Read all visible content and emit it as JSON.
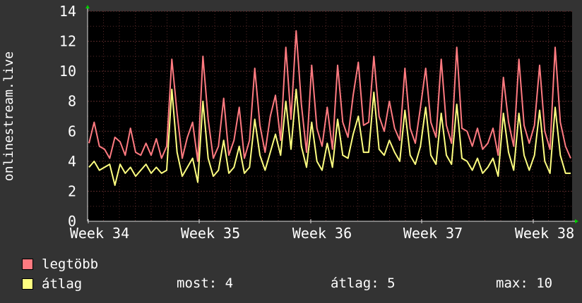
{
  "chart_data": {
    "type": "line",
    "ylabel": "onlinestream.live",
    "ylim": [
      0,
      14
    ],
    "yticks": [
      0,
      2,
      4,
      6,
      8,
      10,
      12,
      14
    ],
    "xticks": [
      "Week 34",
      "Week 35",
      "Week 36",
      "Week 37",
      "Week 38"
    ],
    "grid": true,
    "colors": {
      "background": "#333333",
      "plot": "#000000",
      "grid": "#5a2a2a",
      "axis": "#dddddd",
      "arrow": "#00cc00"
    },
    "series": [
      {
        "name": "legtöbb",
        "color": "#ff7a80",
        "values": [
          5.2,
          6.6,
          5.0,
          4.8,
          4.2,
          5.6,
          5.3,
          4.4,
          6.2,
          4.6,
          4.4,
          5.2,
          4.4,
          5.5,
          4.2,
          5.0,
          10.8,
          7.2,
          4.2,
          5.6,
          6.6,
          4.0,
          11.0,
          6.8,
          4.2,
          5.0,
          8.2,
          4.4,
          5.4,
          7.6,
          4.2,
          5.4,
          10.2,
          6.4,
          4.6,
          7.0,
          8.4,
          5.4,
          11.6,
          6.8,
          12.7,
          7.8,
          4.6,
          10.4,
          6.2,
          5.0,
          7.6,
          4.8,
          10.4,
          6.6,
          5.6,
          8.4,
          10.6,
          6.4,
          6.6,
          11.0,
          7.0,
          6.0,
          8.0,
          6.2,
          5.4,
          10.2,
          6.2,
          5.2,
          7.6,
          10.2,
          6.6,
          5.6,
          10.8,
          6.4,
          5.2,
          11.6,
          6.2,
          6.0,
          5.0,
          6.2,
          4.8,
          5.2,
          6.2,
          4.4,
          9.6,
          6.6,
          5.0,
          10.8,
          6.4,
          5.2,
          6.4,
          10.4,
          6.0,
          4.8,
          11.6,
          6.6,
          5.0,
          4.2
        ]
      },
      {
        "name": "átlag",
        "color": "#ffff80",
        "values": [
          3.6,
          4.0,
          3.4,
          3.6,
          3.8,
          2.4,
          3.8,
          3.2,
          3.6,
          3.0,
          3.4,
          3.8,
          3.2,
          3.6,
          3.2,
          3.4,
          8.8,
          4.6,
          3.0,
          3.6,
          4.2,
          2.6,
          8.0,
          4.2,
          3.0,
          3.4,
          5.4,
          3.2,
          3.6,
          5.0,
          3.2,
          3.6,
          6.8,
          4.4,
          3.4,
          4.6,
          5.8,
          4.4,
          8.0,
          4.8,
          8.8,
          5.0,
          3.6,
          6.6,
          4.0,
          3.4,
          5.2,
          3.6,
          6.8,
          4.4,
          4.2,
          5.8,
          7.0,
          4.6,
          4.6,
          8.6,
          4.8,
          4.4,
          5.4,
          4.6,
          4.0,
          7.4,
          4.4,
          3.8,
          5.0,
          7.6,
          4.4,
          3.8,
          7.2,
          4.4,
          3.8,
          7.8,
          4.2,
          4.0,
          3.4,
          4.2,
          3.2,
          3.6,
          4.2,
          3.0,
          7.2,
          4.6,
          3.4,
          7.2,
          4.4,
          3.4,
          4.4,
          7.4,
          4.0,
          3.2,
          7.6,
          4.4,
          3.2,
          3.2
        ]
      }
    ]
  },
  "legend": {
    "max_label": "legtöbb",
    "avg_label": "átlag"
  },
  "stats": {
    "now": "most: 4",
    "avg": "átlag: 5",
    "max": "max: 10"
  }
}
